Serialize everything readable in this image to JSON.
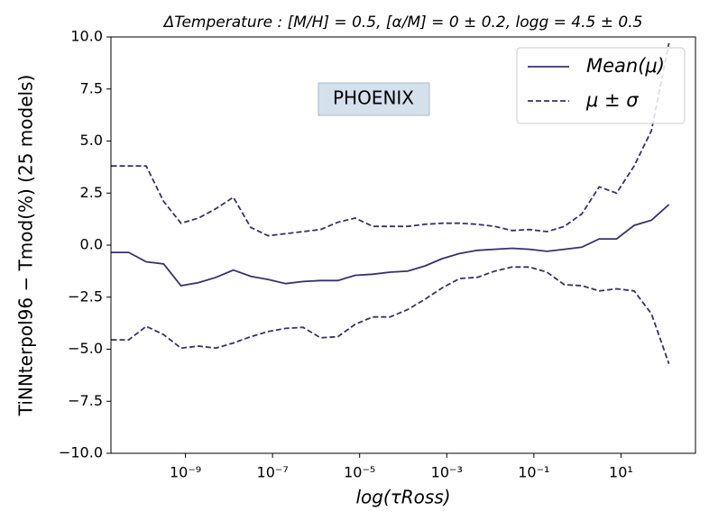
{
  "chart_data": {
    "type": "line",
    "title": "ΔTemperature : [M/H] = 0.5, [α/M] = 0 ± 0.2, logg = 4.5 ± 0.5",
    "xlabel": "log(τRoss)",
    "ylabel": "TiNNterpol96 − Tmod(%) (25 models)",
    "annotation": "PHOENIX",
    "xscale": "log",
    "xlim": [
      1.95e-11,
      513
    ],
    "xticks": [
      {
        "value": 1e-09,
        "label": "10⁻⁹"
      },
      {
        "value": 1e-07,
        "label": "10⁻⁷"
      },
      {
        "value": 1e-05,
        "label": "10⁻⁵"
      },
      {
        "value": 0.001,
        "label": "10⁻³"
      },
      {
        "value": 0.1,
        "label": "10⁻¹"
      },
      {
        "value": 10,
        "label": "10¹"
      }
    ],
    "ylim": [
      -10,
      10
    ],
    "yticks": [
      {
        "value": 10,
        "label": "10.0"
      },
      {
        "value": 7.5,
        "label": "7.5"
      },
      {
        "value": 5,
        "label": "5.0"
      },
      {
        "value": 2.5,
        "label": "2.5"
      },
      {
        "value": 0,
        "label": "0.0"
      },
      {
        "value": -2.5,
        "label": "−2.5"
      },
      {
        "value": -5,
        "label": "−5.0"
      },
      {
        "value": -7.5,
        "label": "−7.5"
      },
      {
        "value": -10,
        "label": "−10.0"
      }
    ],
    "legend": "upper right",
    "x": [
      2e-11,
      5e-11,
      1.26e-10,
      3.16e-10,
      7.9e-10,
      2e-09,
      5e-09,
      1.26e-08,
      3.16e-08,
      7.9e-08,
      2e-07,
      5e-07,
      1.26e-06,
      3.16e-06,
      7.9e-06,
      2e-05,
      5e-05,
      0.000126,
      0.000316,
      0.00079,
      0.002,
      0.005,
      0.0126,
      0.0316,
      0.079,
      0.2,
      0.5,
      1.26,
      3.16,
      7.9,
      20,
      50,
      126
    ],
    "series": [
      {
        "name": "Mean(μ)",
        "color": "#35336b",
        "linestyle": "solid",
        "values": [
          -0.35,
          -0.35,
          -0.8,
          -0.9,
          -1.95,
          -1.8,
          -1.55,
          -1.2,
          -1.5,
          -1.65,
          -1.85,
          -1.75,
          -1.7,
          -1.7,
          -1.45,
          -1.4,
          -1.3,
          -1.25,
          -1.0,
          -0.65,
          -0.4,
          -0.25,
          -0.2,
          -0.15,
          -0.2,
          -0.3,
          -0.2,
          -0.1,
          0.3,
          0.3,
          0.95,
          1.2,
          1.95
        ]
      },
      {
        "name": "μ ± σ",
        "color": "#35336b",
        "linestyle": "dashed",
        "upper": [
          3.8,
          3.8,
          3.8,
          2.1,
          1.05,
          1.3,
          1.75,
          2.3,
          0.85,
          0.45,
          0.55,
          0.65,
          0.75,
          1.1,
          1.3,
          0.9,
          0.9,
          0.9,
          1.0,
          1.05,
          1.05,
          1.0,
          0.9,
          0.7,
          0.75,
          0.65,
          0.9,
          1.5,
          2.8,
          2.5,
          3.8,
          5.5,
          9.7
        ],
        "lower": [
          -4.55,
          -4.55,
          -3.9,
          -4.3,
          -4.95,
          -4.85,
          -4.95,
          -4.7,
          -4.4,
          -4.15,
          -4.0,
          -3.95,
          -4.45,
          -4.4,
          -3.8,
          -3.45,
          -3.45,
          -3.1,
          -2.6,
          -2.05,
          -1.6,
          -1.55,
          -1.25,
          -1.05,
          -1.05,
          -1.3,
          -1.9,
          -1.95,
          -2.2,
          -2.1,
          -2.2,
          -3.3,
          -5.7
        ]
      }
    ]
  }
}
